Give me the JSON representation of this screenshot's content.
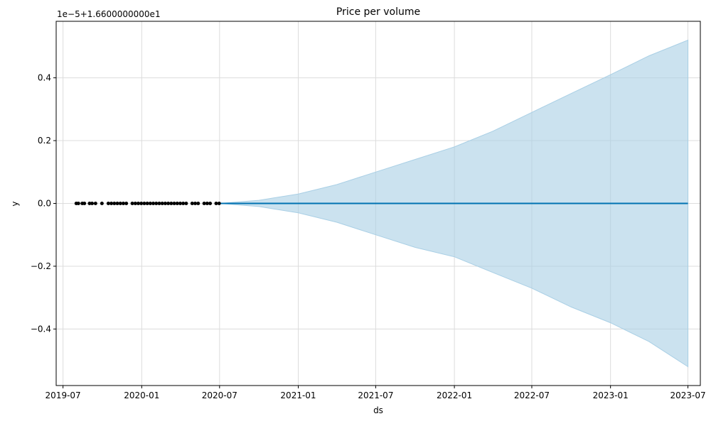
{
  "chart_data": {
    "type": "line",
    "title": "Price per volume",
    "xlabel": "ds",
    "ylabel": "y",
    "offset_text": "1e−5+1.6600000000e1",
    "x_range": [
      "2019-06-15",
      "2023-07-30"
    ],
    "ylim": [
      -0.58,
      0.58
    ],
    "x_ticks": [
      "2019-07",
      "2020-01",
      "2020-07",
      "2021-01",
      "2021-07",
      "2022-01",
      "2022-07",
      "2023-01",
      "2023-07"
    ],
    "y_ticks": [
      -0.4,
      -0.2,
      0.0,
      0.2,
      0.4
    ],
    "y_tick_labels": [
      "−0.4",
      "−0.2",
      "0.0",
      "0.2",
      "0.4"
    ],
    "grid": true,
    "colors": {
      "forecast": "#0072B2",
      "band": "#a9cfe5",
      "points": "#000000"
    },
    "observed": {
      "x": [
        "2019-08-01",
        "2019-08-06",
        "2019-08-15",
        "2019-08-20",
        "2019-09-01",
        "2019-09-07",
        "2019-09-15",
        "2019-09-30",
        "2019-10-15",
        "2019-10-22",
        "2019-10-29",
        "2019-11-05",
        "2019-11-12",
        "2019-11-19",
        "2019-11-26",
        "2019-12-10",
        "2019-12-17",
        "2019-12-24",
        "2019-12-31",
        "2020-01-07",
        "2020-01-14",
        "2020-01-21",
        "2020-01-28",
        "2020-02-04",
        "2020-02-11",
        "2020-02-18",
        "2020-02-25",
        "2020-03-03",
        "2020-03-10",
        "2020-03-17",
        "2020-03-24",
        "2020-03-31",
        "2020-04-07",
        "2020-04-14",
        "2020-04-28",
        "2020-05-05",
        "2020-05-12",
        "2020-05-26",
        "2020-06-02",
        "2020-06-09",
        "2020-06-23",
        "2020-06-30"
      ],
      "y": [
        0,
        0,
        0,
        0,
        0,
        0,
        0,
        0,
        0,
        0,
        0,
        0,
        0,
        0,
        0,
        0,
        0,
        0,
        0,
        0,
        0,
        0,
        0,
        0,
        0,
        0,
        0,
        0,
        0,
        0,
        0,
        0,
        0,
        0,
        0,
        0,
        0,
        0,
        0,
        0,
        0,
        0
      ]
    },
    "forecast": {
      "x": [
        "2020-07-01",
        "2023-07-01"
      ],
      "y": [
        0,
        0
      ]
    },
    "interval": {
      "x": [
        "2020-07-01",
        "2020-10-01",
        "2021-01-01",
        "2021-04-01",
        "2021-07-01",
        "2021-10-01",
        "2022-01-01",
        "2022-04-01",
        "2022-07-01",
        "2022-10-01",
        "2023-01-01",
        "2023-04-01",
        "2023-07-01"
      ],
      "upper": [
        0.0,
        0.01,
        0.03,
        0.06,
        0.1,
        0.14,
        0.18,
        0.23,
        0.29,
        0.35,
        0.41,
        0.47,
        0.52
      ],
      "lower": [
        0.0,
        -0.01,
        -0.03,
        -0.06,
        -0.1,
        -0.14,
        -0.17,
        -0.22,
        -0.27,
        -0.33,
        -0.38,
        -0.44,
        -0.52
      ]
    }
  }
}
